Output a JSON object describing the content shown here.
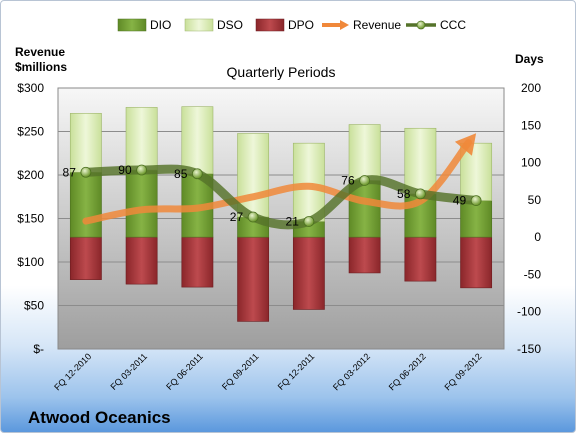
{
  "chart_data": {
    "type": "bar",
    "title": "Quarterly Periods",
    "company": "Atwood Oceanics",
    "left_axis_title_line1": "Revenue",
    "left_axis_title_line2": "$millions",
    "right_axis_title": "Days",
    "categories": [
      "FQ 12-2010",
      "FQ 03-2011",
      "FQ 06-2011",
      "FQ 09-2011",
      "FQ 12-2011",
      "FQ 03-2012",
      "FQ 06-2012",
      "FQ 09-2012"
    ],
    "left_axis": {
      "min": 0,
      "max": 300,
      "ticks": [
        "$-",
        "$50",
        "$100",
        "$150",
        "$200",
        "$250",
        "$300"
      ]
    },
    "right_axis": {
      "min": -150,
      "max": 200,
      "ticks": [
        "-150",
        "-100",
        "-50",
        "0",
        "50",
        "100",
        "150",
        "200"
      ]
    },
    "series": [
      {
        "name": "DIO",
        "axis": "days",
        "color": "#6f9a2f",
        "values": [
          87,
          90,
          85,
          27,
          21,
          76,
          58,
          49
        ]
      },
      {
        "name": "DSO",
        "axis": "days",
        "color": "#d7e9b0",
        "values": [
          79,
          84,
          90,
          112,
          105,
          75,
          88,
          77
        ]
      },
      {
        "name": "DPO",
        "axis": "days",
        "color": "#9b2d31",
        "values": [
          -57,
          -63,
          -67,
          -113,
          -97,
          -48,
          -59,
          -68
        ]
      },
      {
        "name": "Revenue",
        "axis": "revenue",
        "color": "#f0883a",
        "values": [
          147,
          160,
          162,
          175,
          187,
          170,
          170,
          248
        ]
      },
      {
        "name": "CCC",
        "axis": "days",
        "color": "#55732a",
        "values": [
          87,
          90,
          85,
          27,
          21,
          76,
          58,
          49
        ]
      }
    ],
    "ccc_labels": [
      "87",
      "90",
      "85",
      "27",
      "21",
      "76",
      "58",
      "49"
    ],
    "legend_position": "top"
  }
}
